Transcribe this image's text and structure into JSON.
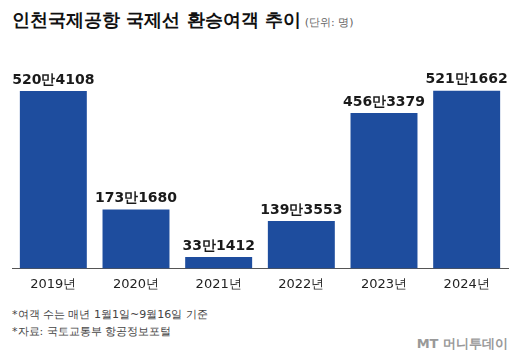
{
  "chart_data": {
    "type": "bar",
    "title": "인천국제공항 국제선 환승여객 추이",
    "subtitle": "(단위: 명)",
    "categories": [
      "2019년",
      "2020년",
      "2021년",
      "2022년",
      "2023년",
      "2024년"
    ],
    "values": [
      5204108,
      1731680,
      331412,
      1393553,
      4563379,
      5211662
    ],
    "value_labels": [
      "520만4108",
      "173만1680",
      "33만1412",
      "139만3553",
      "456만3379",
      "521만1662"
    ],
    "color": "#1e4d9e",
    "data_labels": true,
    "grid": false,
    "tick_labels": "x",
    "notes": [
      "*여객 수는 매년 1월1일~9월16일 기준",
      "*자료: 국토교통부 항공정보포털"
    ],
    "credit": "MT 머니투데이"
  }
}
